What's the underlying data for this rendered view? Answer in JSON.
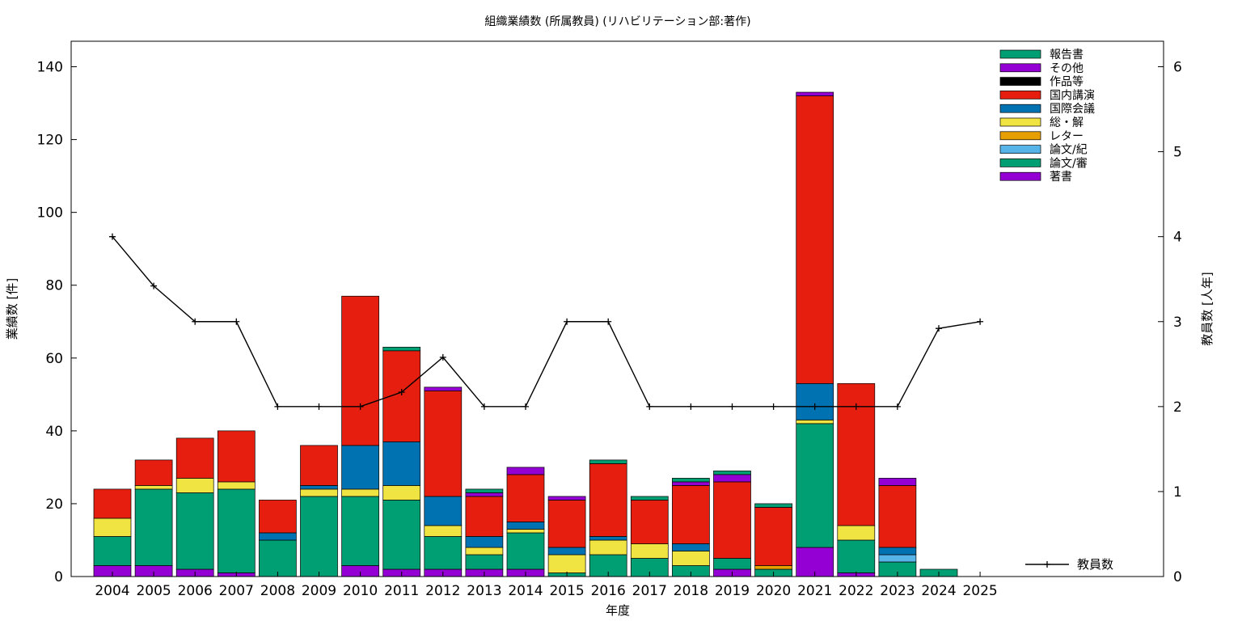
{
  "chart_data": {
    "type": "bar",
    "stacked": true,
    "title": "組織業績数 (所属教員) (リハビリテーション部:著作)",
    "xlabel": "年度",
    "ylabel": "業績数 [件]",
    "y2label": "教員数 [人年]",
    "ylim": [
      0,
      147
    ],
    "y2lim": [
      0,
      6.3
    ],
    "yticks": [
      0,
      20,
      40,
      60,
      80,
      100,
      120,
      140
    ],
    "y2ticks": [
      0,
      1,
      2,
      3,
      4,
      5,
      6
    ],
    "categories": [
      "2004",
      "2005",
      "2006",
      "2007",
      "2008",
      "2009",
      "2010",
      "2011",
      "2012",
      "2013",
      "2014",
      "2015",
      "2016",
      "2017",
      "2018",
      "2019",
      "2020",
      "2021",
      "2022",
      "2023",
      "2024",
      "2025"
    ],
    "legend_position": "top-right",
    "series": [
      {
        "name": "著書",
        "color": "#9400d3",
        "values": [
          3,
          3,
          2,
          1,
          0,
          0,
          3,
          2,
          2,
          2,
          2,
          0,
          0,
          0,
          0,
          2,
          0,
          8,
          1,
          0,
          0,
          0
        ]
      },
      {
        "name": "論文/審",
        "color": "#009e73",
        "values": [
          8,
          21,
          21,
          23,
          10,
          22,
          19,
          19,
          9,
          4,
          10,
          1,
          6,
          5,
          3,
          3,
          2,
          34,
          9,
          4,
          2,
          0
        ]
      },
      {
        "name": "論文/紀",
        "color": "#56b4e9",
        "values": [
          0,
          0,
          0,
          0,
          0,
          0,
          0,
          0,
          0,
          0,
          0,
          0,
          0,
          0,
          0,
          0,
          0,
          0,
          0,
          2,
          0,
          0
        ]
      },
      {
        "name": "レター",
        "color": "#e69f00",
        "values": [
          0,
          0,
          0,
          0,
          0,
          0,
          0,
          0,
          0,
          0,
          0,
          0,
          0,
          0,
          0,
          0,
          1,
          0,
          0,
          0,
          0,
          0
        ]
      },
      {
        "name": "総・解",
        "color": "#f0e442",
        "values": [
          5,
          1,
          4,
          2,
          0,
          2,
          2,
          4,
          3,
          2,
          1,
          5,
          4,
          4,
          4,
          0,
          0,
          1,
          4,
          0,
          0,
          0
        ]
      },
      {
        "name": "国際会議",
        "color": "#0072b2",
        "values": [
          0,
          0,
          0,
          0,
          2,
          1,
          12,
          12,
          8,
          3,
          2,
          2,
          1,
          0,
          2,
          0,
          0,
          10,
          0,
          2,
          0,
          0
        ]
      },
      {
        "name": "国内講演",
        "color": "#e51e10",
        "values": [
          8,
          7,
          11,
          14,
          9,
          11,
          41,
          25,
          29,
          11,
          13,
          13,
          20,
          12,
          16,
          21,
          16,
          79,
          39,
          17,
          0,
          0
        ]
      },
      {
        "name": "作品等",
        "color": "#000000",
        "values": [
          0,
          0,
          0,
          0,
          0,
          0,
          0,
          0,
          0,
          0,
          0,
          0,
          0,
          0,
          0,
          0,
          0,
          0,
          0,
          0,
          0,
          0
        ]
      },
      {
        "name": "その他",
        "color": "#9400d3",
        "values": [
          0,
          0,
          0,
          0,
          0,
          0,
          0,
          0,
          1,
          1,
          2,
          1,
          0,
          0,
          1,
          2,
          0,
          1,
          0,
          2,
          0,
          0
        ]
      },
      {
        "name": "報告書",
        "color": "#009e73",
        "values": [
          0,
          0,
          0,
          0,
          0,
          0,
          0,
          1,
          0,
          1,
          0,
          0,
          1,
          1,
          1,
          1,
          1,
          0,
          0,
          0,
          0,
          0
        ]
      }
    ],
    "line_series": {
      "name": "教員数",
      "axis": "right",
      "color": "#000000",
      "values": [
        4.0,
        3.42,
        3.0,
        3.0,
        2.0,
        2.0,
        2.0,
        2.17,
        2.58,
        2.0,
        2.0,
        3.0,
        3.0,
        2.0,
        2.0,
        2.0,
        2.0,
        2.0,
        2.0,
        2.0,
        2.92,
        3.0
      ]
    }
  }
}
